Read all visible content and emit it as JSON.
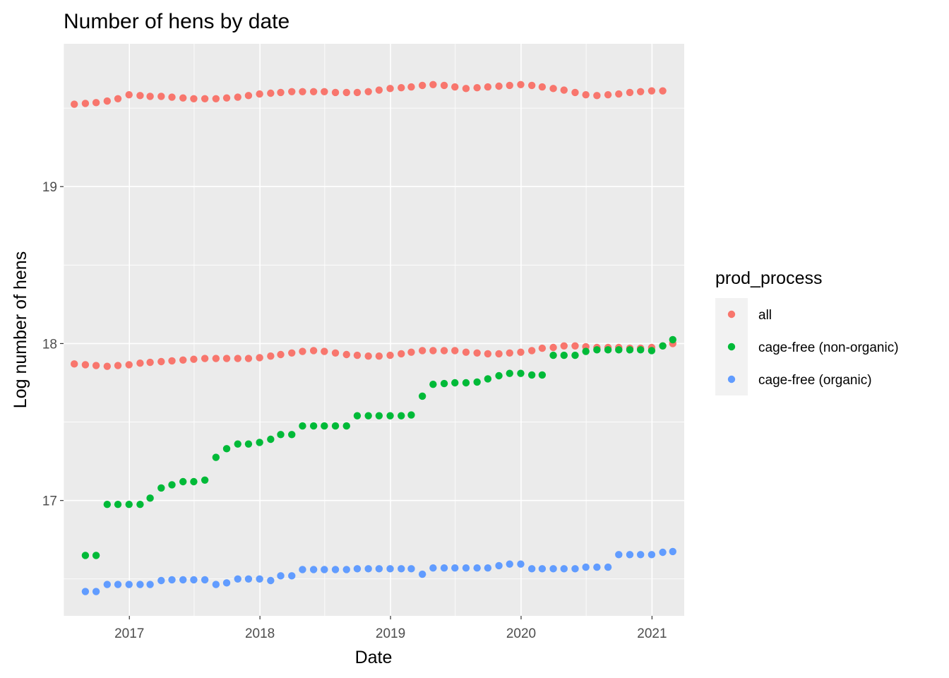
{
  "chart_data": {
    "type": "scatter",
    "title": "Number of hens by date",
    "xlabel": "Date",
    "ylabel": "Log number of hens",
    "x_axis_type": "date",
    "xlim": [
      "2016-07-01",
      "2021-04-01"
    ],
    "ylim": [
      16.265,
      19.91
    ],
    "x_ticks": [
      "2017",
      "2018",
      "2019",
      "2020",
      "2021"
    ],
    "y_ticks": [
      17,
      18,
      19
    ],
    "grid": true,
    "legend": {
      "title": "prod_process",
      "placement": "right",
      "entries": [
        "all",
        "cage-free (non-organic)",
        "cage-free (organic)"
      ]
    },
    "series": [
      {
        "name": "all",
        "color": "#F8766D",
        "points": [
          [
            "2016-07-31",
            19.525
          ],
          [
            "2016-08-31",
            19.53
          ],
          [
            "2016-09-30",
            19.535
          ],
          [
            "2016-10-31",
            19.545
          ],
          [
            "2016-11-30",
            19.56
          ],
          [
            "2016-12-31",
            19.585
          ],
          [
            "2017-01-31",
            19.58
          ],
          [
            "2017-02-28",
            19.575
          ],
          [
            "2017-03-31",
            19.575
          ],
          [
            "2017-04-30",
            19.57
          ],
          [
            "2017-05-31",
            19.565
          ],
          [
            "2017-06-30",
            19.56
          ],
          [
            "2017-07-31",
            19.56
          ],
          [
            "2017-08-31",
            19.56
          ],
          [
            "2017-09-30",
            19.565
          ],
          [
            "2017-10-31",
            19.57
          ],
          [
            "2017-11-30",
            19.58
          ],
          [
            "2017-12-31",
            19.59
          ],
          [
            "2018-01-31",
            19.595
          ],
          [
            "2018-02-28",
            19.6
          ],
          [
            "2018-03-31",
            19.605
          ],
          [
            "2018-04-30",
            19.605
          ],
          [
            "2018-05-31",
            19.605
          ],
          [
            "2018-06-30",
            19.605
          ],
          [
            "2018-07-31",
            19.6
          ],
          [
            "2018-08-31",
            19.6
          ],
          [
            "2018-09-30",
            19.6
          ],
          [
            "2018-10-31",
            19.605
          ],
          [
            "2018-11-30",
            19.615
          ],
          [
            "2018-12-31",
            19.625
          ],
          [
            "2019-01-31",
            19.63
          ],
          [
            "2019-02-28",
            19.635
          ],
          [
            "2019-03-31",
            19.645
          ],
          [
            "2019-04-30",
            19.65
          ],
          [
            "2019-05-31",
            19.645
          ],
          [
            "2019-06-30",
            19.635
          ],
          [
            "2019-07-31",
            19.625
          ],
          [
            "2019-08-31",
            19.63
          ],
          [
            "2019-09-30",
            19.635
          ],
          [
            "2019-10-31",
            19.64
          ],
          [
            "2019-11-30",
            19.645
          ],
          [
            "2019-12-31",
            19.65
          ],
          [
            "2020-01-31",
            19.645
          ],
          [
            "2020-02-29",
            19.635
          ],
          [
            "2020-03-31",
            19.625
          ],
          [
            "2020-04-30",
            19.615
          ],
          [
            "2020-05-31",
            19.6
          ],
          [
            "2020-06-30",
            19.585
          ],
          [
            "2020-07-31",
            19.58
          ],
          [
            "2020-08-31",
            19.585
          ],
          [
            "2020-09-30",
            19.59
          ],
          [
            "2020-10-31",
            19.6
          ],
          [
            "2020-11-30",
            19.605
          ],
          [
            "2020-12-31",
            19.61
          ],
          [
            "2021-01-31",
            19.61
          ],
          [
            "2016-07-31",
            17.87
          ],
          [
            "2016-08-31",
            17.865
          ],
          [
            "2016-09-30",
            17.86
          ],
          [
            "2016-10-31",
            17.855
          ],
          [
            "2016-11-30",
            17.86
          ],
          [
            "2016-12-31",
            17.865
          ],
          [
            "2017-01-31",
            17.875
          ],
          [
            "2017-02-28",
            17.88
          ],
          [
            "2017-03-31",
            17.885
          ],
          [
            "2017-04-30",
            17.89
          ],
          [
            "2017-05-31",
            17.895
          ],
          [
            "2017-06-30",
            17.9
          ],
          [
            "2017-07-31",
            17.905
          ],
          [
            "2017-08-31",
            17.905
          ],
          [
            "2017-09-30",
            17.905
          ],
          [
            "2017-10-31",
            17.905
          ],
          [
            "2017-11-30",
            17.905
          ],
          [
            "2017-12-31",
            17.91
          ],
          [
            "2018-01-31",
            17.92
          ],
          [
            "2018-02-28",
            17.93
          ],
          [
            "2018-03-31",
            17.94
          ],
          [
            "2018-04-30",
            17.95
          ],
          [
            "2018-05-31",
            17.955
          ],
          [
            "2018-06-30",
            17.95
          ],
          [
            "2018-07-31",
            17.94
          ],
          [
            "2018-08-31",
            17.93
          ],
          [
            "2018-09-30",
            17.925
          ],
          [
            "2018-10-31",
            17.92
          ],
          [
            "2018-11-30",
            17.92
          ],
          [
            "2018-12-31",
            17.925
          ],
          [
            "2019-01-31",
            17.935
          ],
          [
            "2019-02-28",
            17.945
          ],
          [
            "2019-03-31",
            17.955
          ],
          [
            "2019-04-30",
            17.955
          ],
          [
            "2019-05-31",
            17.955
          ],
          [
            "2019-06-30",
            17.955
          ],
          [
            "2019-07-31",
            17.945
          ],
          [
            "2019-08-31",
            17.94
          ],
          [
            "2019-09-30",
            17.935
          ],
          [
            "2019-10-31",
            17.935
          ],
          [
            "2019-11-30",
            17.94
          ],
          [
            "2019-12-31",
            17.945
          ],
          [
            "2020-01-31",
            17.955
          ],
          [
            "2020-02-29",
            17.97
          ],
          [
            "2020-03-31",
            17.975
          ],
          [
            "2020-04-30",
            17.985
          ],
          [
            "2020-05-31",
            17.985
          ],
          [
            "2020-06-30",
            17.98
          ],
          [
            "2020-07-31",
            17.975
          ],
          [
            "2020-08-31",
            17.975
          ],
          [
            "2020-09-30",
            17.975
          ],
          [
            "2020-10-31",
            17.97
          ],
          [
            "2020-11-30",
            17.97
          ],
          [
            "2020-12-31",
            17.975
          ],
          [
            "2021-01-31",
            17.985
          ],
          [
            "2021-02-28",
            18.0
          ]
        ]
      },
      {
        "name": "cage-free (non-organic)",
        "color": "#00BA38",
        "points": [
          [
            "2016-08-31",
            16.65
          ],
          [
            "2016-09-30",
            16.65
          ],
          [
            "2016-10-31",
            16.975
          ],
          [
            "2016-11-30",
            16.975
          ],
          [
            "2016-12-31",
            16.975
          ],
          [
            "2017-01-31",
            16.975
          ],
          [
            "2017-02-28",
            17.015
          ],
          [
            "2017-03-31",
            17.08
          ],
          [
            "2017-04-30",
            17.1
          ],
          [
            "2017-05-31",
            17.12
          ],
          [
            "2017-06-30",
            17.12
          ],
          [
            "2017-07-31",
            17.13
          ],
          [
            "2017-08-31",
            17.275
          ],
          [
            "2017-09-30",
            17.33
          ],
          [
            "2017-10-31",
            17.36
          ],
          [
            "2017-11-30",
            17.36
          ],
          [
            "2017-12-31",
            17.37
          ],
          [
            "2018-01-31",
            17.39
          ],
          [
            "2018-02-28",
            17.42
          ],
          [
            "2018-03-31",
            17.42
          ],
          [
            "2018-04-30",
            17.475
          ],
          [
            "2018-05-31",
            17.475
          ],
          [
            "2018-06-30",
            17.475
          ],
          [
            "2018-07-31",
            17.475
          ],
          [
            "2018-08-31",
            17.475
          ],
          [
            "2018-09-30",
            17.54
          ],
          [
            "2018-10-31",
            17.54
          ],
          [
            "2018-11-30",
            17.54
          ],
          [
            "2018-12-31",
            17.54
          ],
          [
            "2019-01-31",
            17.54
          ],
          [
            "2019-02-28",
            17.545
          ],
          [
            "2019-03-31",
            17.665
          ],
          [
            "2019-04-30",
            17.74
          ],
          [
            "2019-05-31",
            17.745
          ],
          [
            "2019-06-30",
            17.75
          ],
          [
            "2019-07-31",
            17.75
          ],
          [
            "2019-08-31",
            17.755
          ],
          [
            "2019-09-30",
            17.775
          ],
          [
            "2019-10-31",
            17.795
          ],
          [
            "2019-11-30",
            17.81
          ],
          [
            "2019-12-31",
            17.81
          ],
          [
            "2020-01-31",
            17.8
          ],
          [
            "2020-02-29",
            17.8
          ],
          [
            "2020-03-31",
            17.925
          ],
          [
            "2020-04-30",
            17.925
          ],
          [
            "2020-05-31",
            17.925
          ],
          [
            "2020-06-30",
            17.95
          ],
          [
            "2020-07-31",
            17.96
          ],
          [
            "2020-08-31",
            17.96
          ],
          [
            "2020-09-30",
            17.96
          ],
          [
            "2020-10-31",
            17.96
          ],
          [
            "2020-11-30",
            17.96
          ],
          [
            "2020-12-31",
            17.955
          ],
          [
            "2021-01-31",
            17.985
          ],
          [
            "2021-02-28",
            18.025
          ]
        ]
      },
      {
        "name": "cage-free (organic)",
        "color": "#619CFF",
        "points": [
          [
            "2016-08-31",
            16.42
          ],
          [
            "2016-09-30",
            16.42
          ],
          [
            "2016-10-31",
            16.465
          ],
          [
            "2016-11-30",
            16.465
          ],
          [
            "2016-12-31",
            16.465
          ],
          [
            "2017-01-31",
            16.465
          ],
          [
            "2017-02-28",
            16.465
          ],
          [
            "2017-03-31",
            16.49
          ],
          [
            "2017-04-30",
            16.495
          ],
          [
            "2017-05-31",
            16.495
          ],
          [
            "2017-06-30",
            16.495
          ],
          [
            "2017-07-31",
            16.495
          ],
          [
            "2017-08-31",
            16.465
          ],
          [
            "2017-09-30",
            16.475
          ],
          [
            "2017-10-31",
            16.5
          ],
          [
            "2017-11-30",
            16.5
          ],
          [
            "2017-12-31",
            16.5
          ],
          [
            "2018-01-31",
            16.49
          ],
          [
            "2018-02-28",
            16.52
          ],
          [
            "2018-03-31",
            16.52
          ],
          [
            "2018-04-30",
            16.56
          ],
          [
            "2018-05-31",
            16.56
          ],
          [
            "2018-06-30",
            16.56
          ],
          [
            "2018-07-31",
            16.56
          ],
          [
            "2018-08-31",
            16.56
          ],
          [
            "2018-09-30",
            16.565
          ],
          [
            "2018-10-31",
            16.565
          ],
          [
            "2018-11-30",
            16.565
          ],
          [
            "2018-12-31",
            16.565
          ],
          [
            "2019-01-31",
            16.565
          ],
          [
            "2019-02-28",
            16.565
          ],
          [
            "2019-03-31",
            16.53
          ],
          [
            "2019-04-30",
            16.57
          ],
          [
            "2019-05-31",
            16.57
          ],
          [
            "2019-06-30",
            16.57
          ],
          [
            "2019-07-31",
            16.57
          ],
          [
            "2019-08-31",
            16.57
          ],
          [
            "2019-09-30",
            16.57
          ],
          [
            "2019-10-31",
            16.585
          ],
          [
            "2019-11-30",
            16.595
          ],
          [
            "2019-12-31",
            16.595
          ],
          [
            "2020-01-31",
            16.565
          ],
          [
            "2020-02-29",
            16.565
          ],
          [
            "2020-03-31",
            16.565
          ],
          [
            "2020-04-30",
            16.565
          ],
          [
            "2020-05-31",
            16.565
          ],
          [
            "2020-06-30",
            16.575
          ],
          [
            "2020-07-31",
            16.575
          ],
          [
            "2020-08-31",
            16.575
          ],
          [
            "2020-09-30",
            16.655
          ],
          [
            "2020-10-31",
            16.655
          ],
          [
            "2020-11-30",
            16.655
          ],
          [
            "2020-12-31",
            16.655
          ],
          [
            "2021-01-31",
            16.67
          ],
          [
            "2021-02-28",
            16.675
          ]
        ]
      }
    ]
  }
}
